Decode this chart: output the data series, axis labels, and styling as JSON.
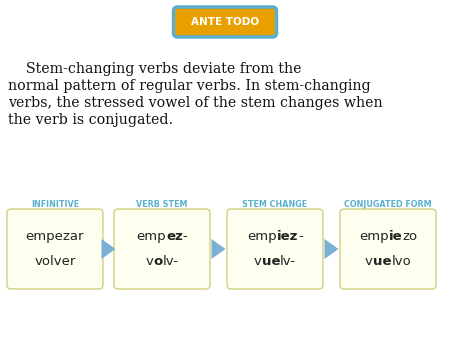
{
  "background_color": "#ffffff",
  "badge_text": "ANTE TODO",
  "badge_bg": "#e8a000",
  "badge_border": "#5aafd0",
  "badge_text_color": "#ffffff",
  "main_text_lines": [
    "    Stem-changing verbs deviate from the",
    "normal pattern of regular verbs. In stem-changing",
    "verbs, the stressed vowel of the stem changes when",
    "the verb is conjugated."
  ],
  "main_fontsize": 10.2,
  "box_bg": "#fffff0",
  "box_border": "#d0d080",
  "arrow_color": "#7ab0d4",
  "label_color": "#5bb0d0",
  "label_fontsize": 5.8,
  "labels": [
    "INFINITIVE",
    "VERB STEM",
    "STEM CHANGE",
    "CONJUGATED FORM"
  ],
  "word_data": [
    {
      "line1_parts": [
        {
          "text": "empezar",
          "bold": false
        }
      ],
      "line2_parts": [
        {
          "text": "volver",
          "bold": false
        }
      ]
    },
    {
      "line1_parts": [
        {
          "text": "emp",
          "bold": false
        },
        {
          "text": "ez",
          "bold": true
        },
        {
          "text": "-",
          "bold": false
        }
      ],
      "line2_parts": [
        {
          "text": "v",
          "bold": false
        },
        {
          "text": "o",
          "bold": true
        },
        {
          "text": "lv-",
          "bold": false
        }
      ]
    },
    {
      "line1_parts": [
        {
          "text": "emp",
          "bold": false
        },
        {
          "text": "iez",
          "bold": true
        },
        {
          "text": "-",
          "bold": false
        }
      ],
      "line2_parts": [
        {
          "text": "v",
          "bold": false
        },
        {
          "text": "ue",
          "bold": true
        },
        {
          "text": "lv-",
          "bold": false
        }
      ]
    },
    {
      "line1_parts": [
        {
          "text": "emp",
          "bold": false
        },
        {
          "text": "ie",
          "bold": true
        },
        {
          "text": "zo",
          "bold": false
        }
      ],
      "line2_parts": [
        {
          "text": "v",
          "bold": false
        },
        {
          "text": "ue",
          "bold": true
        },
        {
          "text": "lvo",
          "bold": false
        }
      ]
    }
  ],
  "text_fontsize": 9.5,
  "text_color": "#222222"
}
